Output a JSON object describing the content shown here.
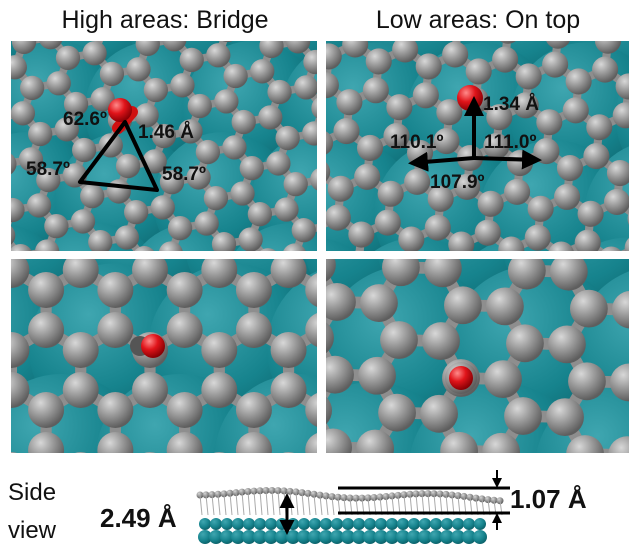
{
  "headers": {
    "left": "High areas: Bridge",
    "right": "Low areas: On top"
  },
  "annotations": {
    "bridge": {
      "angle_top": "62.6º",
      "bond": "1.46 Å",
      "angle_left": "58.7º",
      "angle_right": "58.7º"
    },
    "on_top": {
      "bond": "1.34 Å",
      "angle_left": "110.1º",
      "angle_right": "111.0º",
      "angle_bottom": "107.9º"
    }
  },
  "side_view": {
    "label_line1": "Side",
    "label_line2": "view",
    "height_left": "2.49 Å",
    "height_right": "1.07 Å"
  }
}
